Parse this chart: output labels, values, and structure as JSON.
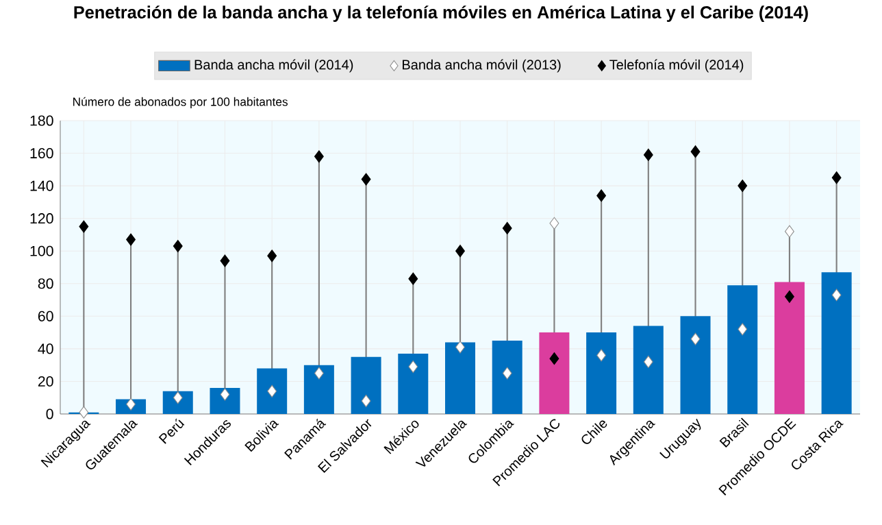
{
  "chart_data": {
    "type": "bar",
    "title": "Penetración de la banda ancha y la telefonía móviles en América Latina y el Caribe (2014)",
    "ylabel": "Número de abonados por 100 habitantes",
    "categories": [
      "Nicaragua",
      "Guatemala",
      "Perú",
      "Honduras",
      "Bolivia",
      "Panamá",
      "El Salvador",
      "México",
      "Venezuela",
      "Colombia",
      "Promedio LAC",
      "Chile",
      "Argentina",
      "Uruguay",
      "Brasil",
      "Promedio OCDE",
      "Costa Rica"
    ],
    "series": [
      {
        "name": "Banda ancha móvil (2014)",
        "color": "#0070c0",
        "colors": [
          "#0070c0",
          "#0070c0",
          "#0070c0",
          "#0070c0",
          "#0070c0",
          "#0070c0",
          "#0070c0",
          "#0070c0",
          "#0070c0",
          "#0070c0",
          "#db3d9e",
          "#0070c0",
          "#0070c0",
          "#0070c0",
          "#0070c0",
          "#db3d9e",
          "#0070c0"
        ],
        "values": [
          1,
          9,
          14,
          16,
          28,
          30,
          35,
          37,
          44,
          45,
          50,
          50,
          54,
          60,
          79,
          81,
          87
        ]
      },
      {
        "name": "Banda ancha móvil (2013)",
        "type": "scatter",
        "marker": "diamond",
        "color": "#ffffff",
        "values": [
          1,
          6,
          10,
          12,
          14,
          25,
          8,
          29,
          41,
          25,
          117,
          36,
          32,
          46,
          52,
          112,
          73
        ]
      },
      {
        "name": "Telefonía móvil (2014)",
        "type": "scatter",
        "marker": "diamond",
        "color": "#000000",
        "values": [
          115,
          107,
          103,
          94,
          97,
          158,
          144,
          83,
          100,
          114,
          34,
          134,
          159,
          161,
          140,
          72,
          145
        ]
      }
    ],
    "ylim": [
      0,
      180
    ],
    "yticks": [
      0,
      20,
      40,
      60,
      80,
      100,
      120,
      140,
      160,
      180
    ],
    "grid": true,
    "legend": "top"
  }
}
